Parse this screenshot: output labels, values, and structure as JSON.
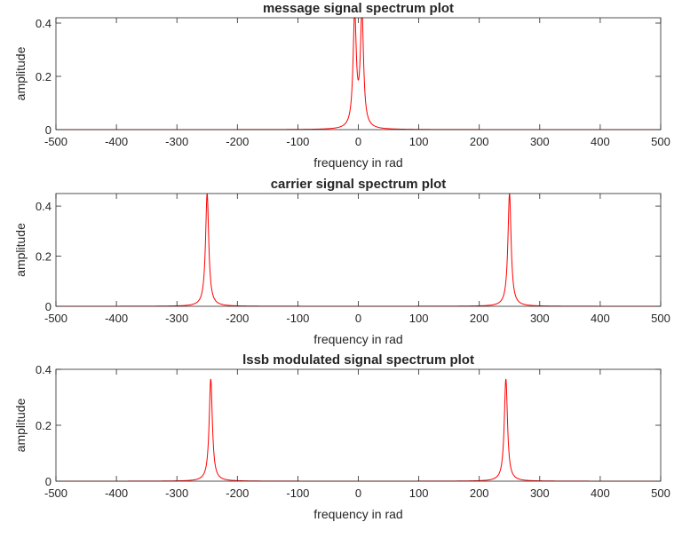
{
  "chart_data": [
    {
      "type": "line",
      "title": "message signal spectrum plot",
      "xlabel": "frequency in rad",
      "ylabel": "amplitude",
      "xlim": [
        -500,
        500
      ],
      "ylim": [
        0,
        0.42
      ],
      "xticks": [
        -500,
        -400,
        -300,
        -200,
        -100,
        0,
        100,
        200,
        300,
        400,
        500
      ],
      "xtick_labels": [
        "-500",
        "-400",
        "-300",
        "-200",
        "-100",
        "0",
        "100",
        "200",
        "300",
        "400",
        "500"
      ],
      "yticks": [
        0,
        0.2,
        0.4
      ],
      "ytick_labels": [
        "0",
        "0.2",
        "0.4"
      ],
      "grid": false,
      "series": [
        {
          "color": "#ff0000",
          "peaks": [
            {
              "x": -6,
              "y": 0.42
            },
            {
              "x": 6,
              "y": 0.42
            }
          ]
        }
      ]
    },
    {
      "type": "line",
      "title": "carrier signal spectrum plot",
      "xlabel": "frequency in rad",
      "ylabel": "amplitude",
      "xlim": [
        -500,
        500
      ],
      "ylim": [
        0,
        0.45
      ],
      "xticks": [
        -500,
        -400,
        -300,
        -200,
        -100,
        0,
        100,
        200,
        300,
        400,
        500
      ],
      "xtick_labels": [
        "-500",
        "-400",
        "-300",
        "-200",
        "-100",
        "0",
        "100",
        "200",
        "300",
        "400",
        "500"
      ],
      "yticks": [
        0,
        0.2,
        0.4
      ],
      "ytick_labels": [
        "0",
        "0.2",
        "0.4"
      ],
      "grid": false,
      "series": [
        {
          "color": "#ff0000",
          "peaks": [
            {
              "x": -250,
              "y": 0.45
            },
            {
              "x": 250,
              "y": 0.45
            }
          ]
        }
      ]
    },
    {
      "type": "line",
      "title": "lssb modulated signal spectrum plot",
      "xlabel": "frequency in rad",
      "ylabel": "amplitude",
      "xlim": [
        -500,
        500
      ],
      "ylim": [
        0,
        0.4
      ],
      "xticks": [
        -500,
        -400,
        -300,
        -200,
        -100,
        0,
        100,
        200,
        300,
        400,
        500
      ],
      "xtick_labels": [
        "-500",
        "-400",
        "-300",
        "-200",
        "-100",
        "0",
        "100",
        "200",
        "300",
        "400",
        "500"
      ],
      "yticks": [
        0,
        0.2,
        0.4
      ],
      "ytick_labels": [
        "0",
        "0.2",
        "0.4"
      ],
      "grid": false,
      "series": [
        {
          "color": "#ff0000",
          "peaks": [
            {
              "x": -244,
              "y": 0.365
            },
            {
              "x": 244,
              "y": 0.365
            }
          ]
        }
      ]
    }
  ]
}
